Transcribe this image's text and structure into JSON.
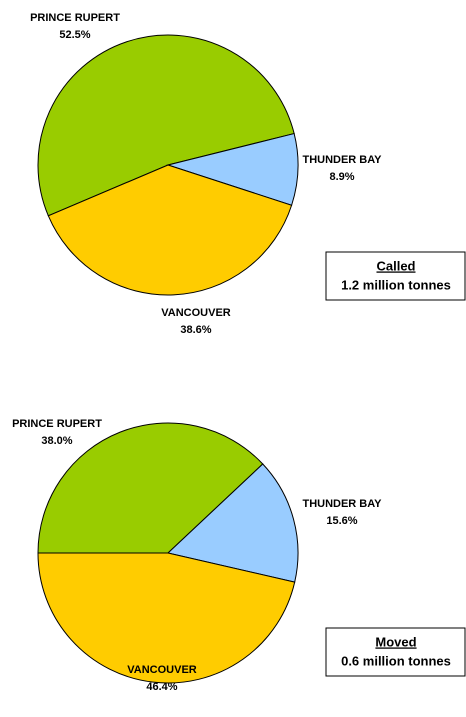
{
  "chart_data": [
    {
      "type": "pie",
      "categories": [
        "PRINCE RUPERT",
        "THUNDER BAY",
        "VANCOUVER"
      ],
      "values": [
        52.5,
        8.9,
        38.6
      ],
      "value_labels": [
        "52.5%",
        "8.9%",
        "38.6%"
      ],
      "colors": [
        "#99cc00",
        "#99ccff",
        "#ffcc00"
      ],
      "annotation_title": "Called",
      "annotation": "1.2 million tonnes"
    },
    {
      "type": "pie",
      "categories": [
        "PRINCE RUPERT",
        "THUNDER BAY",
        "VANCOUVER"
      ],
      "values": [
        38.0,
        15.6,
        46.4
      ],
      "value_labels": [
        "38.0%",
        "15.6%",
        "46.4%"
      ],
      "colors": [
        "#99cc00",
        "#99ccff",
        "#ffcc00"
      ],
      "annotation_title": "Moved",
      "annotation": "0.6 million tonnes"
    }
  ]
}
